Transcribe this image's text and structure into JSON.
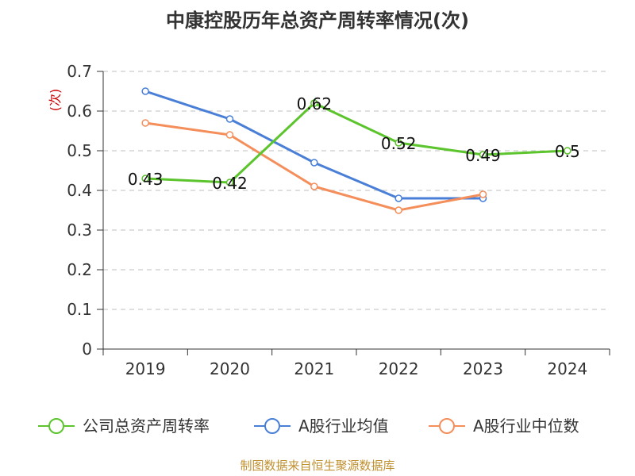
{
  "chart_data": {
    "type": "line",
    "title": "中康控股历年总资产周转率情况(次)",
    "ylabel": "(次)",
    "source": "制图数据来自恒生聚源数据库",
    "categories": [
      "2019",
      "2020",
      "2021",
      "2022",
      "2023",
      "2024"
    ],
    "ylim": [
      0,
      0.7
    ],
    "yticks": [
      "0",
      "0.1",
      "0.2",
      "0.3",
      "0.4",
      "0.5",
      "0.6",
      "0.7"
    ],
    "grid": true,
    "legend_position": "bottom",
    "series": [
      {
        "name": "公司总资产周转率",
        "color": "#5cc42d",
        "values": [
          0.43,
          0.42,
          0.62,
          0.52,
          0.49,
          0.5
        ],
        "labels": [
          "0.43",
          "0.42",
          "0.62",
          "0.52",
          "0.49",
          "0.5"
        ]
      },
      {
        "name": "A股行业均值",
        "color": "#4a7fd8",
        "values": [
          0.65,
          0.58,
          0.47,
          0.38,
          0.38,
          null
        ],
        "labels": []
      },
      {
        "name": "A股行业中位数",
        "color": "#f48e5a",
        "values": [
          0.57,
          0.54,
          0.41,
          0.35,
          0.39,
          null
        ],
        "labels": []
      }
    ]
  }
}
